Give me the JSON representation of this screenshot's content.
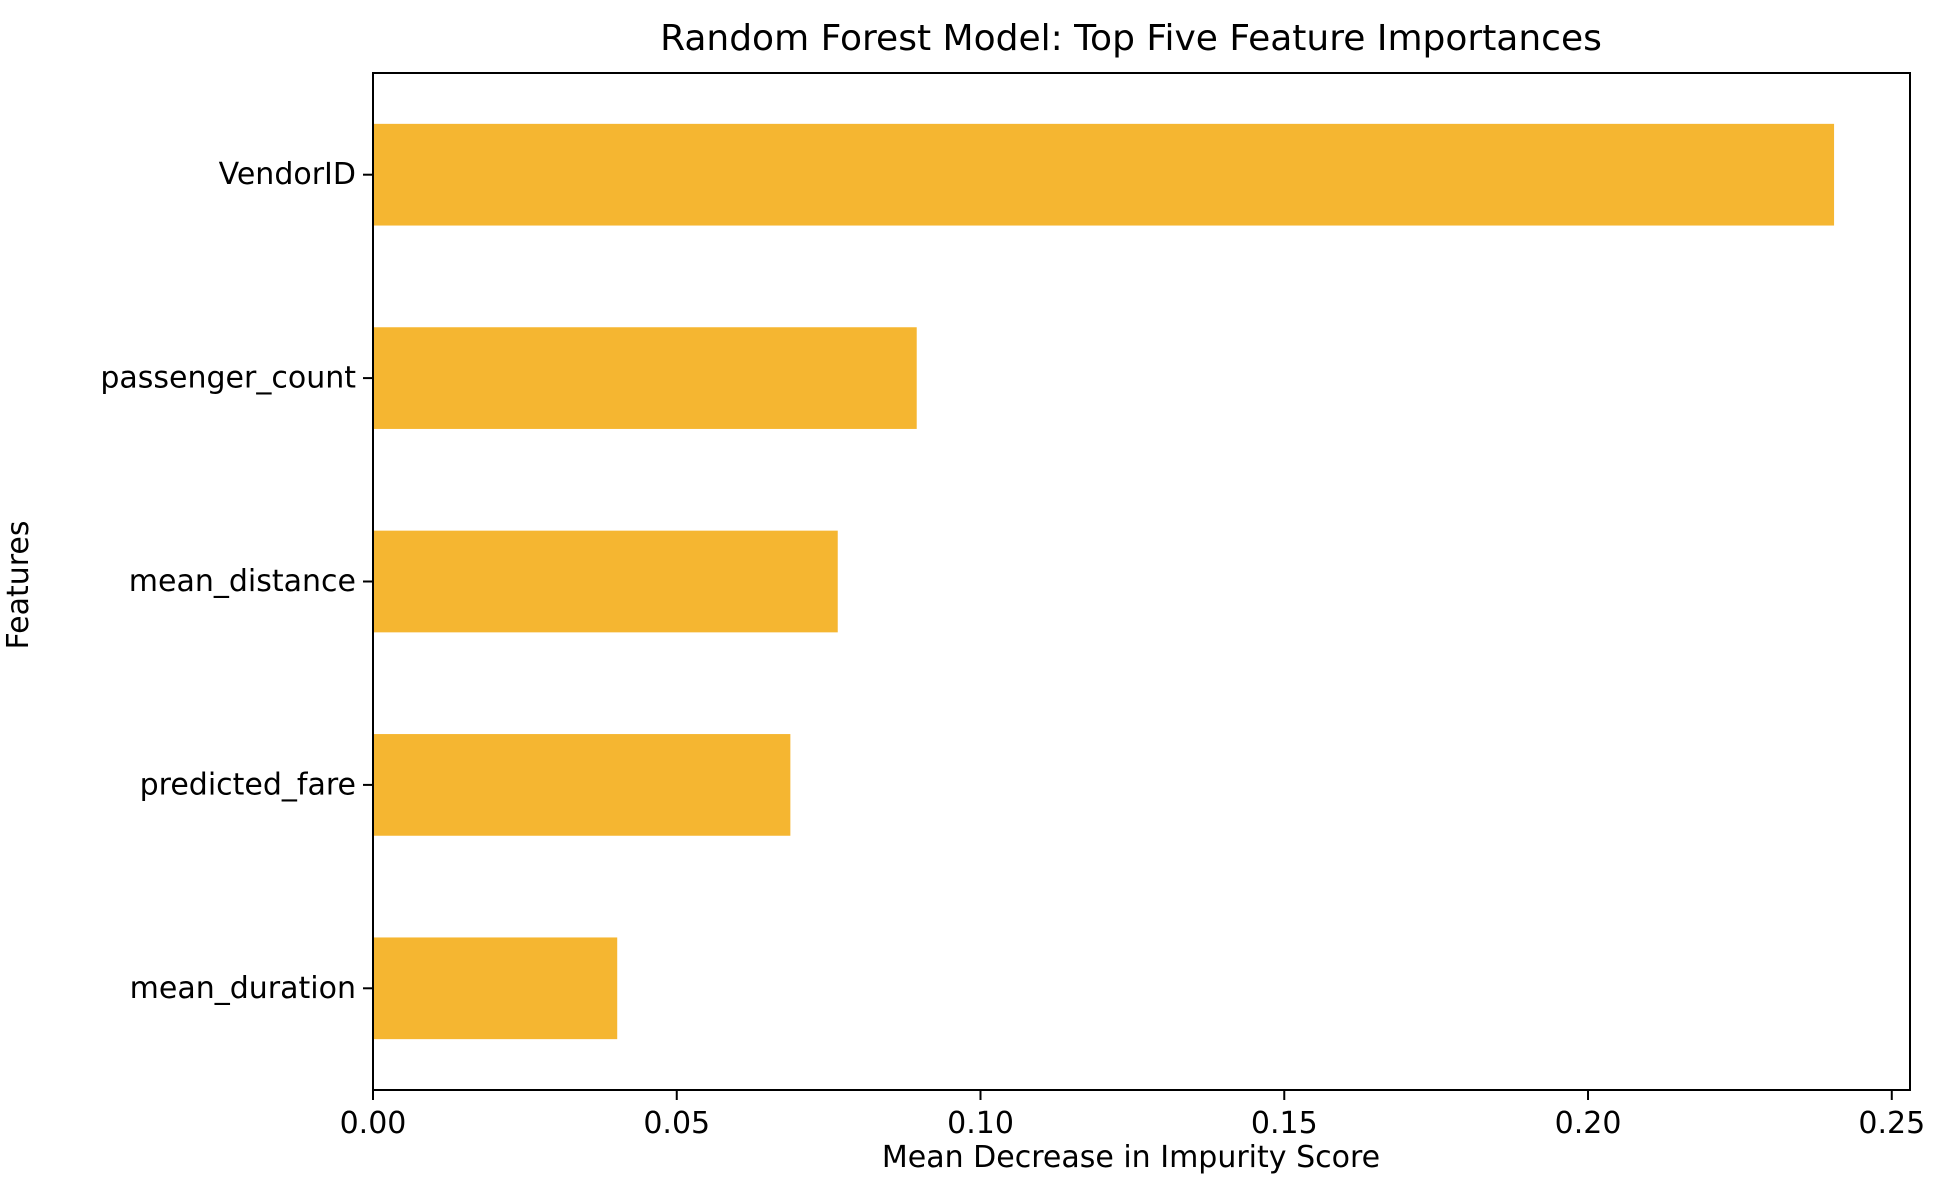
{
  "chart_data": {
    "type": "bar",
    "orientation": "horizontal",
    "title": "Random Forest Model: Top Five Feature Importances",
    "xlabel": "Mean Decrease in Impurity Score",
    "ylabel": "Features",
    "categories": [
      "VendorID",
      "passenger_count",
      "mean_distance",
      "predicted_fare",
      "mean_duration"
    ],
    "values": [
      0.2405,
      0.0895,
      0.0765,
      0.0687,
      0.0402
    ],
    "xlim": [
      0.0,
      0.253
    ],
    "xticks": [
      0.0,
      0.05,
      0.1,
      0.15,
      0.2,
      0.25
    ],
    "xtick_labels": [
      "0.00",
      "0.05",
      "0.10",
      "0.15",
      "0.20",
      "0.25"
    ],
    "grid": false,
    "legend": "none",
    "bar_color": "#f5b631",
    "axis_color": "#000000",
    "text_color": "#000000"
  }
}
